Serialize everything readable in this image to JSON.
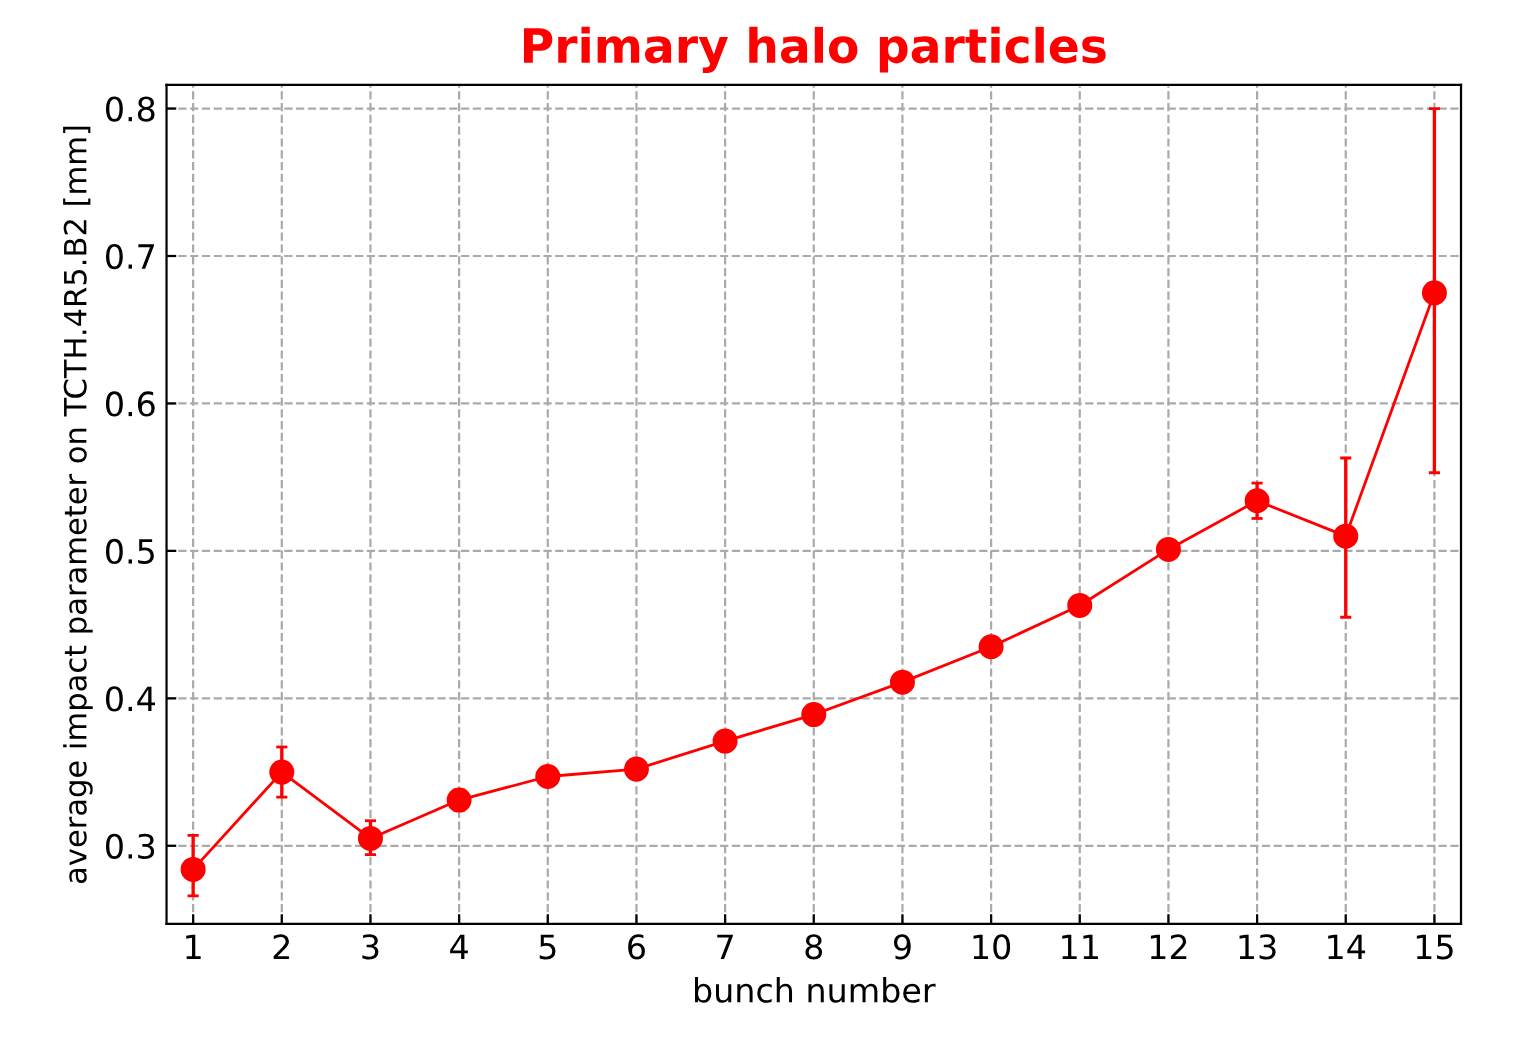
{
  "chart_data": {
    "type": "line",
    "title": "Primary halo particles",
    "xlabel": "bunch number",
    "ylabel": "average impact parameter on TCTH.4R5.B2 [mm]",
    "x": [
      1,
      2,
      3,
      4,
      5,
      6,
      7,
      8,
      9,
      10,
      11,
      12,
      13,
      14,
      15
    ],
    "series": [
      {
        "color": "#ff0000",
        "values": [
          0.284,
          0.35,
          0.305,
          0.331,
          0.347,
          0.352,
          0.371,
          0.389,
          0.411,
          0.435,
          0.463,
          0.501,
          0.534,
          0.51,
          0.675
        ],
        "errors": [
          [
            0.266,
            0.307
          ],
          [
            0.333,
            0.367
          ],
          [
            0.294,
            0.317
          ],
          [
            0.324,
            0.338
          ],
          [
            0.343,
            0.351
          ],
          [
            0.348,
            0.356
          ],
          [
            0.367,
            0.375
          ],
          [
            0.385,
            0.393
          ],
          [
            0.407,
            0.415
          ],
          [
            0.431,
            0.439
          ],
          [
            0.459,
            0.467
          ],
          [
            0.496,
            0.506
          ],
          [
            0.522,
            0.546
          ],
          [
            0.455,
            0.563
          ],
          [
            0.553,
            0.8
          ]
        ]
      }
    ],
    "xlim": [
      0.7,
      15.3
    ],
    "ylim": [
      0.247,
      0.816
    ],
    "xticks": [
      1,
      2,
      3,
      4,
      5,
      6,
      7,
      8,
      9,
      10,
      11,
      12,
      13,
      14,
      15
    ],
    "yticks": [
      0.3,
      0.4,
      0.5,
      0.6,
      0.7,
      0.8
    ],
    "grid": true,
    "marker": "circle",
    "line_style": "solid"
  }
}
